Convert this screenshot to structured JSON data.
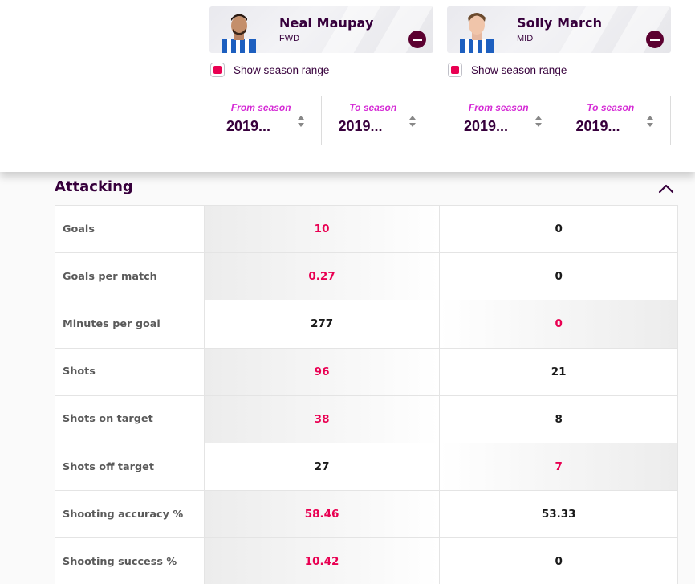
{
  "players": [
    {
      "name": "Neal Maupay",
      "position": "FWD",
      "season_range_label": "Show season range",
      "from_label": "From season",
      "from_value": "2019...",
      "to_label": "To season",
      "to_value": "2019..."
    },
    {
      "name": "Solly March",
      "position": "MID",
      "season_range_label": "Show season range",
      "from_label": "From season",
      "from_value": "2019...",
      "to_label": "To season",
      "to_value": "2019..."
    }
  ],
  "section": {
    "title": "Attacking",
    "rows": [
      {
        "label": "Goals",
        "p1": "10",
        "p2": "0",
        "best": "p1"
      },
      {
        "label": "Goals per match",
        "p1": "0.27",
        "p2": "0",
        "best": "p1"
      },
      {
        "label": "Minutes per goal",
        "p1": "277",
        "p2": "0",
        "best": "p2"
      },
      {
        "label": "Shots",
        "p1": "96",
        "p2": "21",
        "best": "p1"
      },
      {
        "label": "Shots on target",
        "p1": "38",
        "p2": "8",
        "best": "p1"
      },
      {
        "label": "Shots off target",
        "p1": "27",
        "p2": "7",
        "best": "p2"
      },
      {
        "label": "Shooting accuracy %",
        "p1": "58.46",
        "p2": "53.33",
        "best": "p1"
      },
      {
        "label": "Shooting success %",
        "p1": "10.42",
        "p2": "0",
        "best": "p1"
      }
    ]
  },
  "colors": {
    "brand_purple": "#37003c",
    "highlight_red": "#e90052",
    "season_label": "#d52bd5",
    "remove_button": "#5b0030"
  },
  "icons": {
    "remove": "minus-circle-icon",
    "checkbox": "checkbox-checked-icon",
    "select": "sort-arrows-icon",
    "collapse": "chevron-up-icon"
  }
}
